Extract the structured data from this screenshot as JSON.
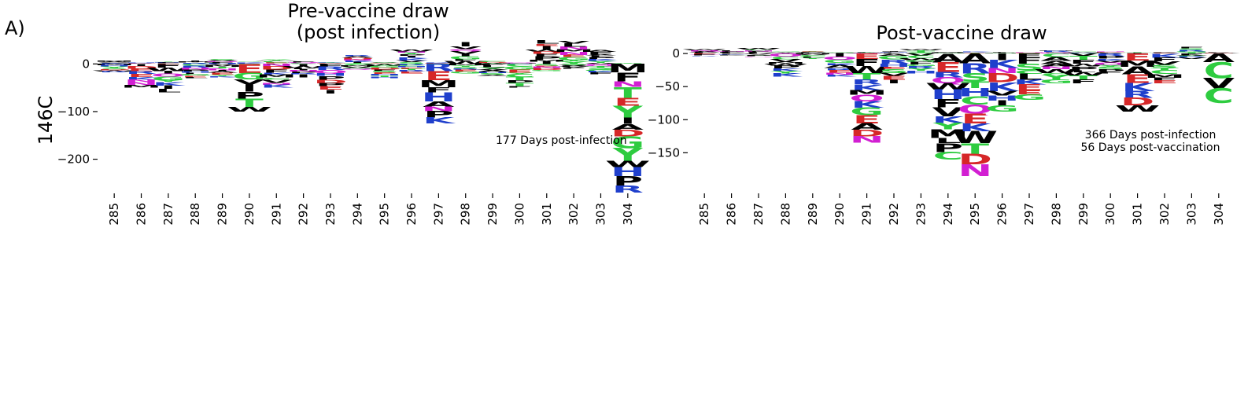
{
  "figure": {
    "panel_label": "A)",
    "row_label": "146C"
  },
  "colors": {
    "green": "#2ecc40",
    "red": "#d62728",
    "blue": "#1f3fcc",
    "magenta": "#d21fd2",
    "black": "#000000",
    "letter_color_map": {
      "A": "black",
      "C": "green",
      "D": "red",
      "E": "red",
      "F": "black",
      "G": "green",
      "H": "blue",
      "I": "black",
      "K": "blue",
      "L": "black",
      "M": "black",
      "N": "magenta",
      "P": "black",
      "Q": "magenta",
      "R": "blue",
      "S": "green",
      "T": "green",
      "V": "black",
      "W": "black",
      "Y": "green"
    }
  },
  "chart_data": [
    {
      "type": "logo",
      "title": "Pre-vaccine draw\n(post infection)",
      "annotation": "177 Days post-infection",
      "ylabel": "146C",
      "ylim": [
        -270,
        55
      ],
      "yticks": [
        0,
        -100,
        -200
      ],
      "categories": [
        "285",
        "286",
        "287",
        "288",
        "289",
        "290",
        "291",
        "292",
        "293",
        "294",
        "295",
        "296",
        "297",
        "298",
        "299",
        "300",
        "301",
        "302",
        "303",
        "304"
      ],
      "positive": [
        6,
        3,
        5,
        7,
        10,
        5,
        9,
        6,
        4,
        18,
        4,
        30,
        3,
        45,
        6,
        4,
        50,
        48,
        30,
        2
      ],
      "negative": [
        -18,
        -50,
        -60,
        -30,
        -28,
        -100,
        -50,
        -28,
        -62,
        -12,
        -30,
        -20,
        -125,
        -20,
        -25,
        -50,
        -15,
        -10,
        -22,
        -270
      ],
      "letters": {
        "304": [
          "M",
          "F",
          "N",
          "T",
          "E",
          "Y",
          "I",
          "A",
          "D",
          "G",
          "Y",
          "W",
          "H",
          "P",
          "R"
        ],
        "297": [
          "R",
          "E",
          "M",
          "F",
          "H",
          "A",
          "N",
          "P",
          "K"
        ],
        "290": [
          "E",
          "G",
          "V",
          "I",
          "P",
          "T",
          "W"
        ],
        "298": [
          "M",
          "Y",
          "S",
          "R",
          "E",
          "G"
        ],
        "301": [
          "S",
          "E",
          "N",
          "D",
          "G"
        ]
      }
    },
    {
      "type": "logo",
      "title": "Post-vaccine draw",
      "annotation": "366 Days post-infection\n56 Days post-vaccination",
      "ylabel": "",
      "ylim": [
        -190,
        12
      ],
      "yticks": [
        0,
        -50,
        -100,
        -150
      ],
      "categories": [
        "285",
        "286",
        "287",
        "288",
        "289",
        "290",
        "291",
        "292",
        "293",
        "294",
        "295",
        "296",
        "297",
        "298",
        "299",
        "300",
        "301",
        "302",
        "303",
        "304"
      ],
      "positive": [
        6,
        4,
        8,
        3,
        4,
        2,
        3,
        4,
        6,
        3,
        3,
        3,
        3,
        5,
        3,
        3,
        2,
        3,
        10,
        2
      ],
      "negative": [
        -4,
        -3,
        -5,
        -35,
        -8,
        -35,
        -135,
        -45,
        -30,
        -160,
        -185,
        -88,
        -70,
        -45,
        -45,
        -30,
        -88,
        -45,
        -8,
        -75
      ],
      "letters": {
        "291": [
          "E",
          "F",
          "W",
          "T",
          "R",
          "K",
          "M",
          "Q",
          "K",
          "G",
          "E",
          "A",
          "D",
          "N"
        ],
        "294": [
          "A",
          "E",
          "R",
          "Q",
          "W",
          "H",
          "F",
          "V",
          "K",
          "Y",
          "M",
          "L",
          "P",
          "C"
        ],
        "295": [
          "A",
          "R",
          "S",
          "T",
          "H",
          "C",
          "Q",
          "E",
          "K",
          "W",
          "T",
          "D",
          "N"
        ],
        "301": [
          "E",
          "M",
          "A",
          "E",
          "K",
          "R",
          "D",
          "W"
        ],
        "304": [
          "A",
          "C",
          "V",
          "C"
        ]
      }
    }
  ]
}
